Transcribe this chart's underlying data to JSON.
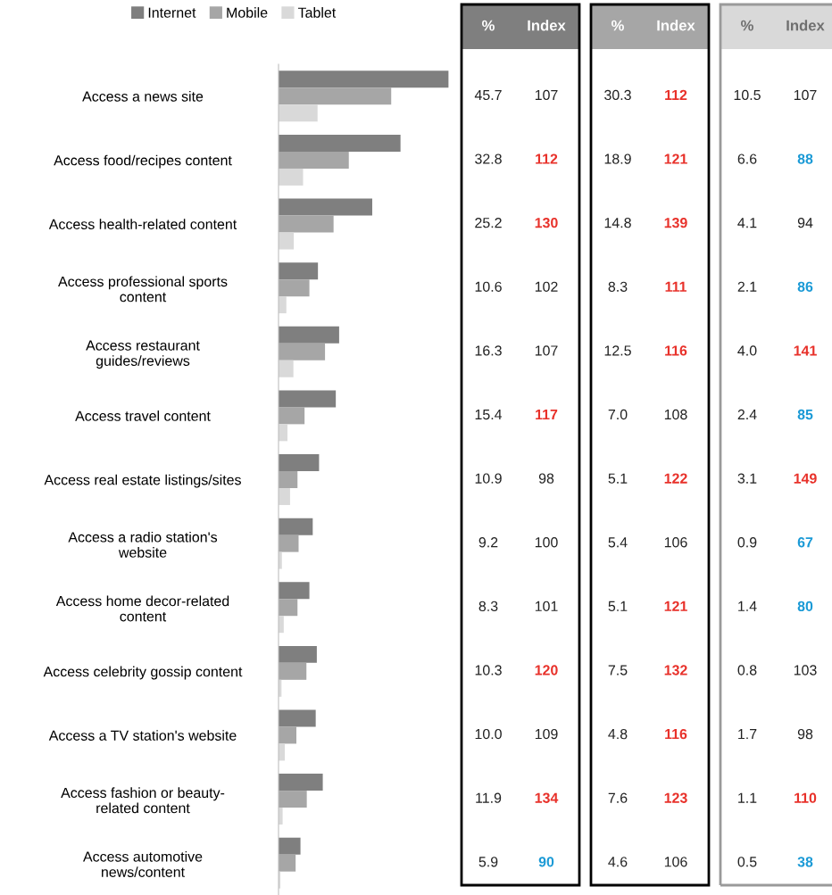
{
  "chart_data": {
    "type": "bar",
    "orientation": "horizontal",
    "legend": "top",
    "grid": false,
    "categories": [
      "Access a news site",
      "Access food/recipes content",
      "Access health-related content",
      "Access professional sports\ncontent",
      "Access restaurant\nguides/reviews",
      "Access travel content",
      "Access real estate listings/sites",
      "Access a radio station's\nwebsite",
      "Access home decor-related\ncontent",
      "Access celebrity gossip content",
      "Access a TV station's website",
      "Access fashion or beauty-\nrelated content",
      "Access automotive\nnews/content"
    ],
    "series": [
      {
        "name": "Internet",
        "color": "#7f7f7f",
        "values": [
          45.7,
          32.8,
          25.2,
          10.6,
          16.3,
          15.4,
          10.9,
          9.2,
          8.3,
          10.3,
          10.0,
          11.9,
          5.9
        ],
        "value_labels": [
          "45.7",
          "32.8",
          "25.2",
          "10.6",
          "16.3",
          "15.4",
          "10.9",
          "9.2",
          "8.3",
          "10.3",
          "10.0",
          "11.9",
          "5.9"
        ]
      },
      {
        "name": "Mobile",
        "color": "#a6a6a6",
        "values": [
          30.3,
          18.9,
          14.8,
          8.3,
          12.5,
          7.0,
          5.1,
          5.4,
          5.1,
          7.5,
          4.8,
          7.6,
          4.6
        ],
        "value_labels": [
          "30.3",
          "18.9",
          "14.8",
          "8.3",
          "12.5",
          "7.0",
          "5.1",
          "5.4",
          "5.1",
          "7.5",
          "4.8",
          "7.6",
          "4.6"
        ]
      },
      {
        "name": "Tablet",
        "color": "#d9d9d9",
        "values": [
          10.5,
          6.6,
          4.1,
          2.1,
          4.0,
          2.4,
          3.1,
          0.9,
          1.4,
          0.8,
          1.7,
          1.1,
          0.5
        ],
        "value_labels": [
          "10.5",
          "6.6",
          "4.1",
          "2.1",
          "4.0",
          "2.4",
          "3.1",
          "0.9",
          "1.4",
          "0.8",
          "1.7",
          "1.1",
          "0.5"
        ]
      }
    ],
    "annotations": [
      "%",
      "Index",
      "%",
      "Index",
      "%",
      "Index",
      "107",
      "112",
      "130",
      "102",
      "107",
      "117",
      "98",
      "100",
      "101",
      "120",
      "109",
      "134",
      "90",
      "112",
      "121",
      "139",
      "111",
      "116",
      "108",
      "122",
      "106",
      "121",
      "132",
      "116",
      "123",
      "106",
      "107",
      "88",
      "94",
      "86",
      "141",
      "85",
      "149",
      "67",
      "80",
      "103",
      "98",
      "110",
      "38"
    ]
  }
}
